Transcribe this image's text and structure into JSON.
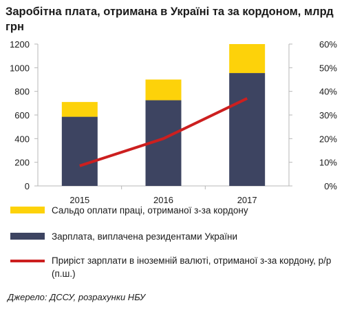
{
  "colors": {
    "saldo": "#fdd20a",
    "salary": "#3d4461",
    "growth": "#cc1f1f",
    "axis": "#b7b7b7"
  },
  "chart_data": {
    "type": "bar",
    "stacked": true,
    "title": "Заробітна плата, отримана в Україні та за кордоном, млрд грн",
    "categories": [
      "2015",
      "2016",
      "2017"
    ],
    "series": [
      {
        "name": "Зарплата, виплачена резидентами України",
        "kind": "bar",
        "axis": "left",
        "values": [
          585,
          725,
          955
        ]
      },
      {
        "name": "Сальдо оплати праці, отриманої з-за кордону",
        "kind": "bar",
        "axis": "left",
        "values": [
          125,
          175,
          245
        ]
      },
      {
        "name": "Приріст зарплати в іноземній валюті, отриманої з-за кордону, р/р (п.ш.)",
        "kind": "line",
        "axis": "right",
        "values": [
          8.5,
          20,
          37
        ]
      }
    ],
    "y_left": {
      "min": 0,
      "max": 1200,
      "ticks": [
        "0",
        "200",
        "400",
        "600",
        "800",
        "1000",
        "1200"
      ]
    },
    "y_right": {
      "min": 0,
      "max": 60,
      "ticks": [
        "0%",
        "10%",
        "20%",
        "30%",
        "40%",
        "50%",
        "60%"
      ]
    },
    "grid": false,
    "legend_position": "bottom"
  },
  "legend": {
    "saldo_label": "Сальдо оплати праці, отриманої з-за кордону",
    "salary_label": "Зарплата, виплачена резидентами України",
    "growth_label": "Приріст зарплати в іноземній валюті, отриманої з-за кордону, р/р (п.ш.)"
  },
  "source": "Джерело: ДССУ, розрахунки НБУ"
}
